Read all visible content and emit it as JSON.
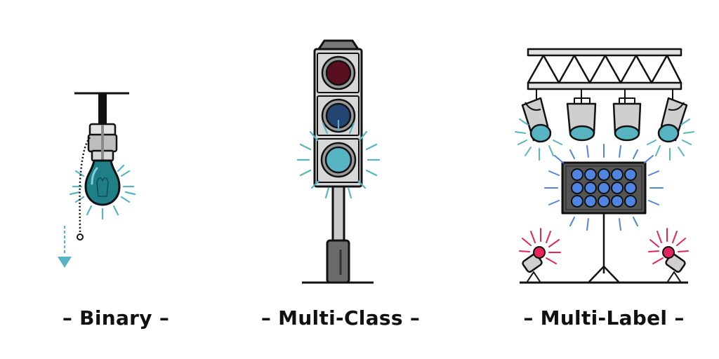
{
  "panels": [
    {
      "id": "binary",
      "caption": "– Binary –",
      "illustration": "pull-chain-light-bulb-icon"
    },
    {
      "id": "multi-class",
      "caption": "– Multi-Class –",
      "illustration": "traffic-light-icon"
    },
    {
      "id": "multi-label",
      "caption": "– Multi-Label –",
      "illustration": "stage-lighting-rig-icon"
    }
  ],
  "colors": {
    "outline": "#111111",
    "teal": "#56b4c3",
    "teal_dark": "#1f7f86",
    "red_off": "#5a0f20",
    "navy_off": "#244471",
    "blue": "#4f84e0",
    "pink": "#e5245a",
    "metal": "#c9c9c9",
    "pole_dark": "#6b6b6b",
    "panel_dark": "#555555"
  }
}
